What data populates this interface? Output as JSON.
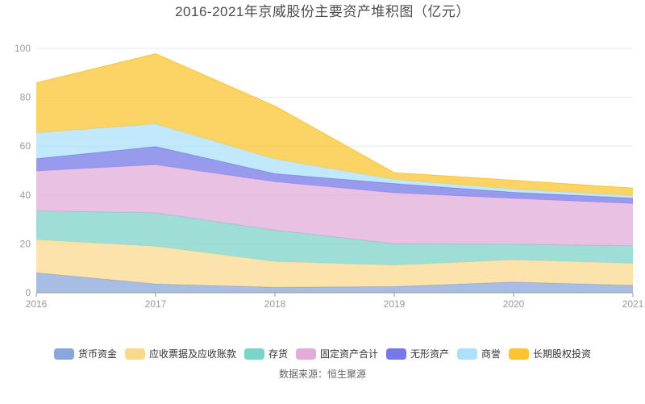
{
  "title": "2016-2021年京威股份主要资产堆积图（亿元）",
  "source": "数据来源：恒生聚源",
  "colors": {
    "title_text": "#4d4d4d",
    "axis_label": "#999999",
    "axis_line": "#999999",
    "gridline": "#e3e8f2",
    "legend_text": "#333333",
    "source_text": "#666666",
    "background": "#ffffff"
  },
  "chart_data": {
    "type": "area",
    "stacked": true,
    "title": "2016-2021年京威股份主要资产堆积图（亿元）",
    "xlabel": "",
    "ylabel": "",
    "categories": [
      "2016",
      "2017",
      "2018",
      "2019",
      "2020",
      "2021"
    ],
    "series": [
      {
        "name": "货币资金",
        "color": "#89A7DB",
        "values": [
          8.2,
          3.6,
          2.2,
          2.5,
          4.4,
          3.0
        ]
      },
      {
        "name": "应收票据及应收账款",
        "color": "#FAD98F",
        "values": [
          13.5,
          15.4,
          10.6,
          8.8,
          9.1,
          9.0
        ]
      },
      {
        "name": "存货",
        "color": "#7ED3C9",
        "values": [
          11.8,
          13.7,
          12.8,
          8.8,
          6.3,
          7.2
        ]
      },
      {
        "name": "固定资产合计",
        "color": "#E2ACD8",
        "values": [
          16.3,
          19.7,
          19.8,
          20.8,
          18.8,
          17.3
        ]
      },
      {
        "name": "无形资产",
        "color": "#7678E8",
        "values": [
          5.1,
          7.4,
          3.3,
          3.8,
          2.5,
          2.2
        ]
      },
      {
        "name": "商誉",
        "color": "#ADE0FB",
        "values": [
          10.5,
          9.3,
          6.0,
          1.7,
          1.3,
          1.1
        ]
      },
      {
        "name": "长期股权投资",
        "color": "#FBC531",
        "values": [
          20.5,
          28.7,
          21.7,
          2.7,
          3.6,
          3.0
        ]
      }
    ],
    "ylim": [
      0,
      100
    ],
    "yticks": [
      0,
      20,
      40,
      60,
      80,
      100
    ],
    "grid": true,
    "legend_position": "bottom",
    "area_opacity": 0.75
  }
}
